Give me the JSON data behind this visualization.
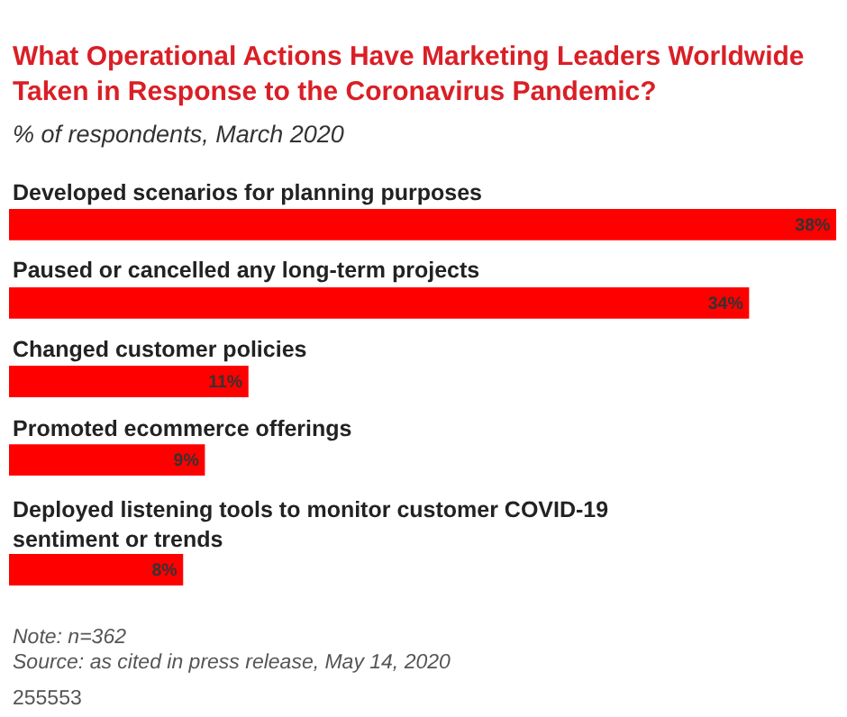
{
  "chart_data": {
    "type": "bar",
    "orientation": "horizontal",
    "title": "What Operational Actions Have Marketing Leaders Worldwide Taken in Response to the Coronavirus Pandemic?",
    "subtitle": "% of respondents, March 2020",
    "categories": [
      "Developed scenarios for planning purposes",
      "Paused or cancelled any long-term projects",
      "Changed customer policies",
      "Promoted ecommerce offerings",
      "Deployed listening tools to monitor customer COVID-19 sentiment or trends"
    ],
    "values": [
      38,
      34,
      11,
      9,
      8
    ],
    "value_labels": [
      "38%",
      "34%",
      "11%",
      "9%",
      "8%"
    ],
    "color": "#ff0000",
    "annotations": [
      "Note: n=362",
      "Source: as cited in press release, May 14, 2020",
      "255553"
    ]
  }
}
